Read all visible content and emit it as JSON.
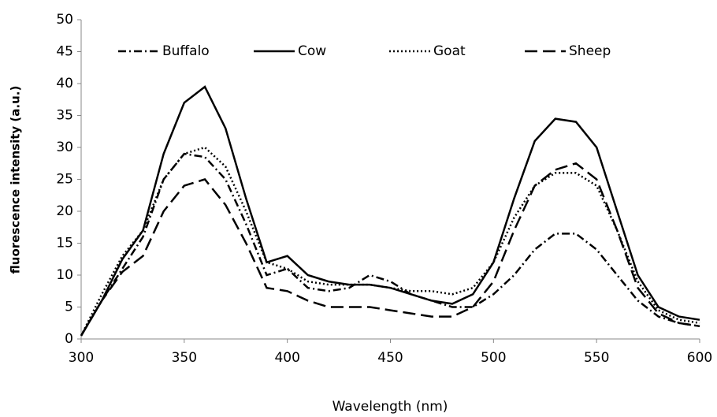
{
  "chart_data": {
    "type": "line",
    "xlabel": "Wavelength (nm)",
    "ylabel": "fluorescence intensity (a.u.)",
    "x": [
      300,
      310,
      320,
      330,
      340,
      350,
      360,
      370,
      380,
      390,
      400,
      410,
      420,
      430,
      440,
      450,
      460,
      470,
      480,
      490,
      500,
      510,
      520,
      530,
      540,
      550,
      560,
      570,
      580,
      590,
      600
    ],
    "series": [
      {
        "name": "Buffalo",
        "color": "#000000",
        "line_style": "dashdot",
        "values": [
          0.5,
          6,
          11,
          16,
          25,
          29,
          28.5,
          25,
          18,
          10,
          11,
          8,
          7.5,
          8,
          10,
          9,
          7,
          6,
          5,
          5,
          7,
          10,
          14,
          16.5,
          16.5,
          14,
          10,
          6,
          3.5,
          2.5,
          2
        ]
      },
      {
        "name": "Cow",
        "color": "#000000",
        "line_style": "solid",
        "values": [
          0.5,
          6,
          12.5,
          17,
          29,
          37,
          39.5,
          33,
          22,
          12,
          13,
          10,
          9,
          8.5,
          8.5,
          8,
          7,
          6,
          5.5,
          7,
          12,
          22,
          31,
          34.5,
          34,
          30,
          20,
          10,
          5,
          3.5,
          3
        ]
      },
      {
        "name": "Goat",
        "color": "#000000",
        "line_style": "dotted",
        "values": [
          0.5,
          7,
          13,
          17,
          25,
          29,
          30,
          27,
          20,
          12,
          11,
          9,
          8.5,
          8.5,
          8.5,
          8,
          7.5,
          7.5,
          7,
          8,
          12,
          19,
          24,
          26,
          26,
          24,
          17,
          9,
          4.5,
          3,
          2.5
        ]
      },
      {
        "name": "Sheep",
        "color": "#000000",
        "line_style": "dashed",
        "values": [
          0.5,
          6,
          10.5,
          13,
          20,
          24,
          25,
          21,
          15,
          8,
          7.5,
          6,
          5,
          5,
          5,
          4.5,
          4,
          3.5,
          3.5,
          5,
          9,
          17,
          24,
          26.5,
          27.5,
          25,
          17,
          8,
          4,
          2.5,
          2
        ]
      }
    ],
    "xlim": [
      300,
      600
    ],
    "xticks": [
      300,
      350,
      400,
      450,
      500,
      550,
      600
    ],
    "ylim": [
      0,
      50
    ],
    "yticks": [
      0,
      5,
      10,
      15,
      20,
      25,
      30,
      35,
      40,
      45,
      50
    ],
    "grid": false,
    "legend": "top"
  }
}
